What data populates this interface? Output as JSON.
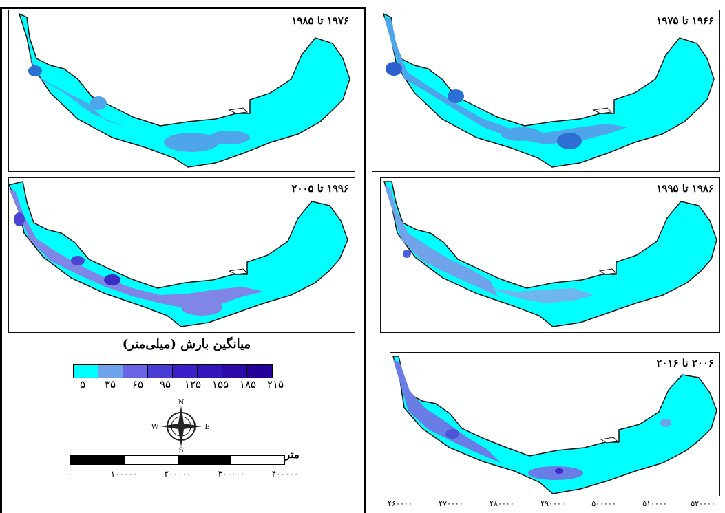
{
  "panels": [
    {
      "id": "p1976",
      "title": "۱۹۷۶ تا ۱۹۸۵"
    },
    {
      "id": "p1966",
      "title": "۱۹۶۶ تا ۱۹۷۵"
    },
    {
      "id": "p1996",
      "title": "۱۹۹۶ تا ۲۰۰۵"
    },
    {
      "id": "p1986",
      "title": "۱۹۸۶ تا ۱۹۹۵"
    },
    {
      "id": "p2006",
      "title": "۲۰۰۶ تا ۲۰۱۶"
    }
  ],
  "legend": {
    "title": "میانگین بارش (میلی‌متر)",
    "class_colors": [
      "#00ffff",
      "#6fa4ea",
      "#6a64e6",
      "#4a3ad6",
      "#3b1fc8",
      "#3414bb",
      "#2c0aa8",
      "#23009a"
    ],
    "ticks": [
      "۵",
      "۳۵",
      "۶۵",
      "۹۵",
      "۱۲۵",
      "۱۵۵",
      "۱۸۵",
      "۲۱۵"
    ]
  },
  "compass": {
    "n": "N",
    "s": "S",
    "e": "E",
    "w": "W"
  },
  "scale": {
    "unit": "متر",
    "ticks": [
      "۰",
      "۱۰۰۰۰۰",
      "۲۰۰۰۰۰",
      "۳۰۰۰۰۰",
      "۴۰۰۰۰۰"
    ]
  },
  "x_axis": {
    "ticks": [
      "۴۶۰۰۰۰",
      "۴۷۰۰۰۰",
      "۴۸۰۰۰۰",
      "۴۹۰۰۰۰",
      "۵۰۰۰۰۰",
      "۵۱۰۰۰۰",
      "۵۲۰۰۰۰"
    ]
  },
  "colors": {
    "land": "#00ffff",
    "light": "#6fb6ee",
    "medium": "#4d8ee6",
    "dark": "#2f5fd0",
    "purple_light": "#7f86e6",
    "purple_dark": "#3d2bc4",
    "outline": "#111111"
  }
}
